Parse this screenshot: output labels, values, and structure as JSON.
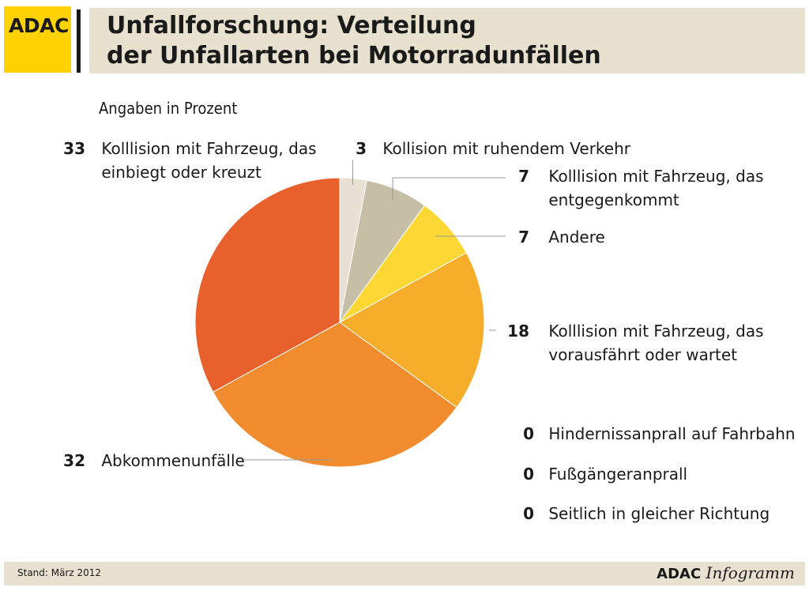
{
  "brand": {
    "logo_text": "ADAC",
    "logo_color": "#ffd200",
    "band_color": "#e8e1d0"
  },
  "header": {
    "title_line1": "Unfallforschung: Verteilung",
    "title_line2": "der Unfallarten bei Motorradunfällen"
  },
  "footer": {
    "stand": "Stand: März 2012",
    "brand_bold": "ADAC",
    "brand_italic": "Infogramm"
  },
  "chart_data": {
    "type": "pie",
    "subtitle": "Angaben in Prozent",
    "slices": [
      {
        "label": "Kollision mit ruhendem Verkehr",
        "value": 3,
        "color": "#e8e0d2"
      },
      {
        "label": "Kolllision mit Fahrzeug, das entgegenkommt",
        "value": 7,
        "color": "#c7bfa5"
      },
      {
        "label": "Andere",
        "value": 7,
        "color": "#fdd835"
      },
      {
        "label": "Kolllision mit Fahrzeug, das vorausfährt oder wartet",
        "value": 18,
        "color": "#f6ae2a"
      },
      {
        "label": "Abkommenunfälle",
        "value": 32,
        "color": "#f08c2e"
      },
      {
        "label": "Kolllision mit Fahrzeug, das einbiegt oder kreuzt",
        "value": 33,
        "color": "#e8612c"
      }
    ],
    "zero_entries": [
      {
        "label": "Hindernissanprall auf Fahrbahn",
        "value": 0
      },
      {
        "label": "Fußgängeranprall",
        "value": 0
      },
      {
        "label": "Seitlich in gleicher Richtung",
        "value": 0
      }
    ]
  }
}
